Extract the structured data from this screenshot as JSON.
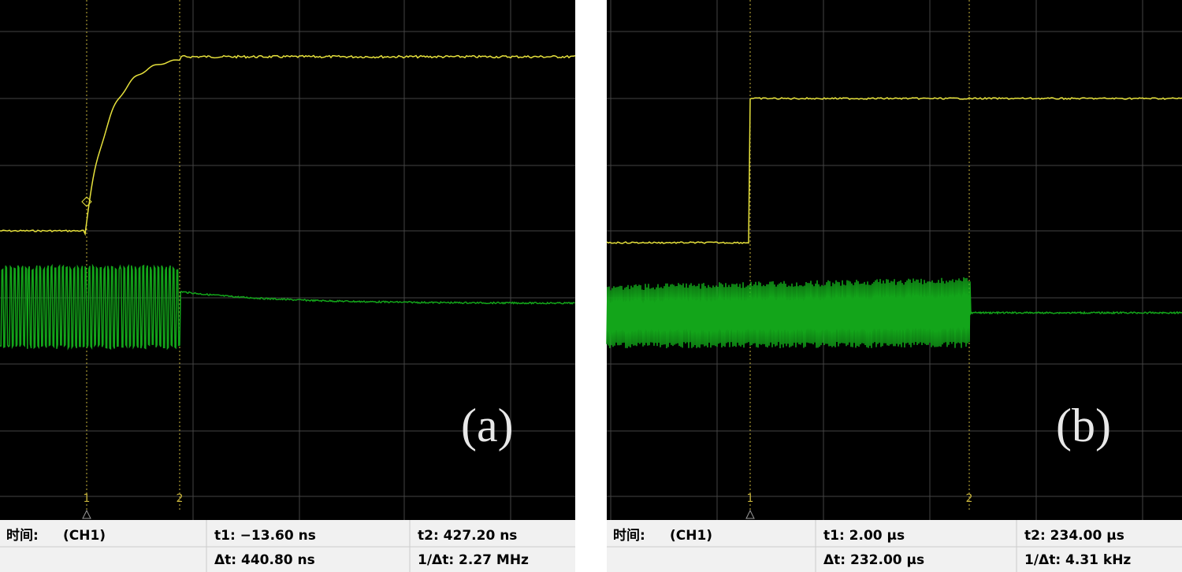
{
  "panels": [
    {
      "label": "(a)",
      "cursors": [
        "1",
        "2"
      ],
      "readout": {
        "time": "时间:",
        "channel": "(CH1)",
        "t1": "t1: −13.60 ns",
        "t2": "t2: 427.20 ns",
        "dt": "Δt: 440.80 ns",
        "inv_dt": "1/Δt: 2.27 MHz"
      }
    },
    {
      "label": "(b)",
      "cursors": [
        "1",
        "2"
      ],
      "readout": {
        "time": "时间:",
        "channel": "(CH1)",
        "t1": "t1: 2.00 µs",
        "t2": "t2: 234.00 µs",
        "dt": "Δt: 232.00 µs",
        "inv_dt": "1/Δt: 4.31 kHz"
      }
    }
  ]
}
